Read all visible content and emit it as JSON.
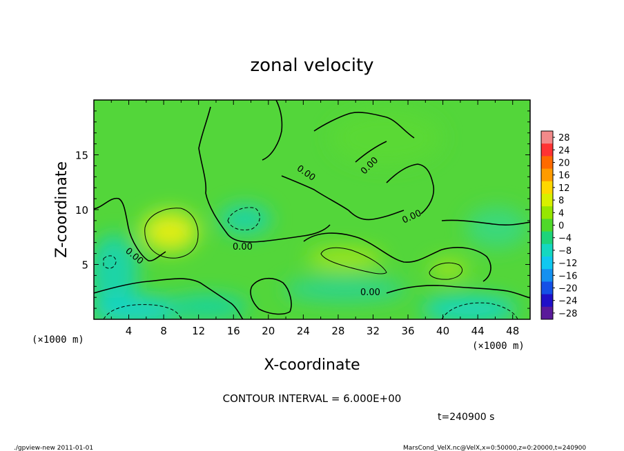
{
  "chart_data": {
    "type": "heatmap",
    "title": "zonal velocity",
    "xlabel": "X-coordinate",
    "ylabel": "Z-coordinate",
    "x_unit": "(×1000 m)",
    "y_unit": "(×1000 m)",
    "xlim": [
      0,
      50
    ],
    "ylim": [
      0,
      20
    ],
    "x_ticks": [
      4,
      8,
      12,
      16,
      20,
      24,
      28,
      32,
      36,
      40,
      44,
      48
    ],
    "y_ticks": [
      5,
      10,
      15
    ],
    "colorbar": {
      "levels": [
        28,
        24,
        20,
        16,
        12,
        8,
        4,
        0,
        -4,
        -8,
        -12,
        -16,
        -20,
        -24,
        -28
      ],
      "colors": [
        "#f28a8a",
        "#ff3333",
        "#ff6a00",
        "#ff9b00",
        "#ffd800",
        "#d8f000",
        "#96e600",
        "#4fd82a",
        "#1ed47a",
        "#15d8c0",
        "#10c8f0",
        "#1490f0",
        "#1450e6",
        "#1f10c8",
        "#5a1a9a"
      ]
    },
    "field_summary": [
      {
        "feature": "positive maximum",
        "x": 9,
        "z": 8,
        "value": 6
      },
      {
        "feature": "positive band",
        "x": 30,
        "z": 5.5,
        "value": 6
      },
      {
        "feature": "positive patch",
        "x": 40,
        "z": 5,
        "value": 6
      },
      {
        "feature": "negative minimum",
        "x": 18,
        "z": 9.5,
        "value": -6
      },
      {
        "feature": "negative minimum",
        "x": 42,
        "z": 1.5,
        "value": -6
      },
      {
        "feature": "negative minimum",
        "x": 2,
        "z": 1.5,
        "value": -6
      }
    ],
    "contour_labels": [
      "0.00",
      "0.00",
      "0.00",
      "0.00",
      "0.00",
      "0.00"
    ]
  },
  "footer": {
    "contour_interval": "CONTOUR INTERVAL = 6.000E+00",
    "time": "t=240900 s",
    "program": "./gpview-new   2011-01-01",
    "source": "MarsCond_VelX.nc@VelX,x=0:50000,z=0:20000,t=240900"
  }
}
